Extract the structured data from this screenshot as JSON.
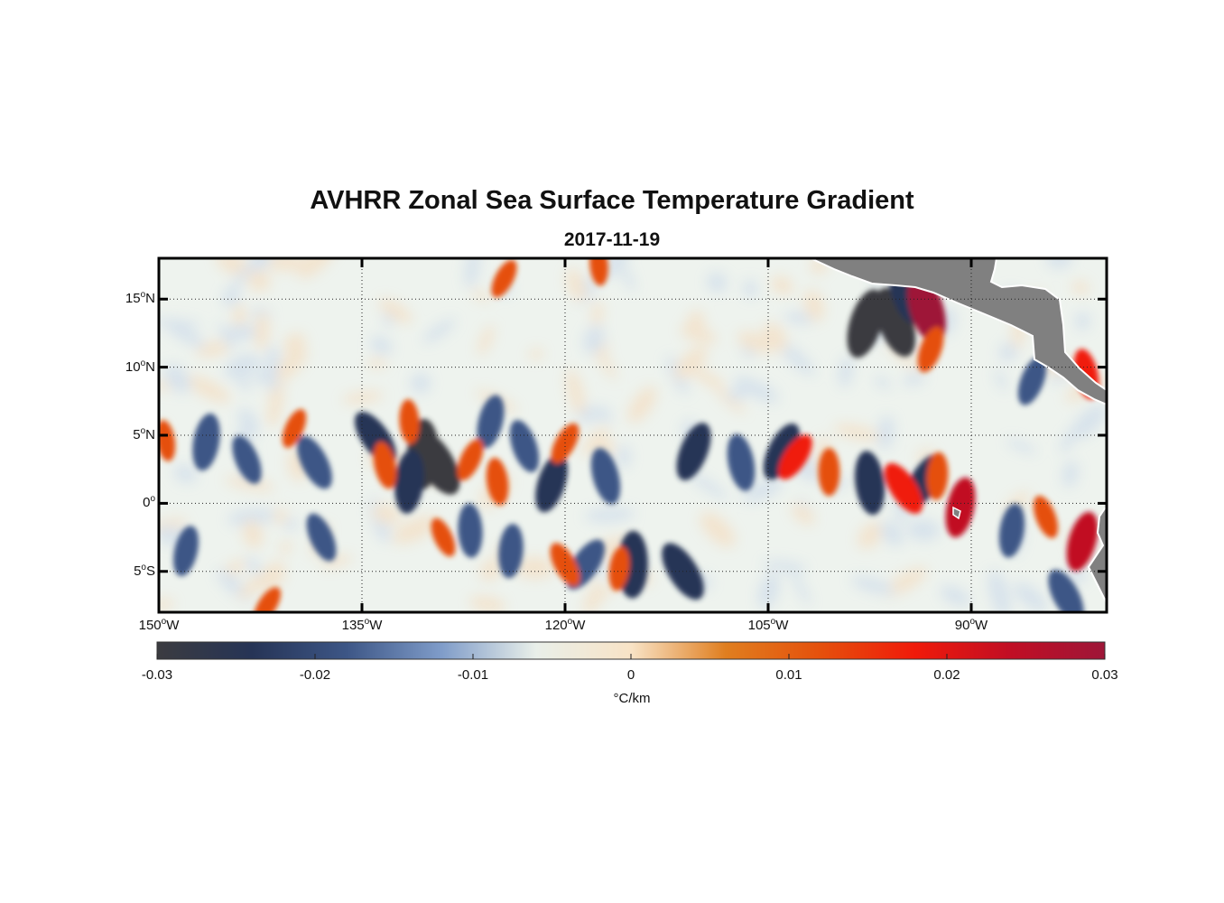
{
  "title": "AVHRR Zonal Sea Surface Temperature Gradient",
  "subtitle": "2017-11-19",
  "colors": {
    "land": "#808080",
    "frame": "#000000",
    "colormap": [
      "#3b3b40",
      "#263456",
      "#3d5686",
      "#7f9cc9",
      "#e9efe9",
      "#f8e3c6",
      "#e07e1f",
      "#e5500c",
      "#f01a0a",
      "#c10e24",
      "#9e1638"
    ]
  },
  "map": {
    "projection": "plate-carree",
    "lon_range": [
      -150,
      -80
    ],
    "lat_range": [
      -8,
      18
    ],
    "graticule": "dotted",
    "lat_ticks": [
      {
        "deg": "15",
        "hemi": "N",
        "value": 15
      },
      {
        "deg": "10",
        "hemi": "N",
        "value": 10
      },
      {
        "deg": "5",
        "hemi": "N",
        "value": 5
      },
      {
        "deg": "0",
        "hemi": "",
        "value": 0
      },
      {
        "deg": "5",
        "hemi": "S",
        "value": -5
      }
    ],
    "lon_ticks": [
      {
        "deg": "150",
        "hemi": "W",
        "value": -150
      },
      {
        "deg": "135",
        "hemi": "W",
        "value": -135
      },
      {
        "deg": "120",
        "hemi": "W",
        "value": -120
      },
      {
        "deg": "105",
        "hemi": "W",
        "value": -105
      },
      {
        "deg": "90",
        "hemi": "W",
        "value": -90
      }
    ],
    "land_regions": [
      "Central America",
      "South America coast",
      "Galapagos Islands"
    ],
    "features": [
      {
        "name": "cold-filament",
        "sign": "negative",
        "strength": -0.022,
        "lon": -134.0,
        "lat": 4.8
      },
      {
        "name": "cold-core",
        "sign": "negative",
        "strength": -0.028,
        "lon": -130.5,
        "lat": 3.6
      },
      {
        "name": "cold-core",
        "sign": "negative",
        "strength": -0.03,
        "lon": -129.5,
        "lat": 3.0
      },
      {
        "name": "cold-filament",
        "sign": "negative",
        "strength": -0.024,
        "lon": -131.5,
        "lat": 1.6
      },
      {
        "name": "cold-filament",
        "sign": "negative",
        "strength": -0.02,
        "lon": -138.5,
        "lat": 3.0
      },
      {
        "name": "cold-filament",
        "sign": "negative",
        "strength": -0.02,
        "lon": -146.5,
        "lat": 4.5
      },
      {
        "name": "cold-filament",
        "sign": "negative",
        "strength": -0.016,
        "lon": -143.5,
        "lat": 3.2
      },
      {
        "name": "cold-patch",
        "sign": "negative",
        "strength": -0.018,
        "lon": -125.5,
        "lat": 6.0
      },
      {
        "name": "cold-patch",
        "sign": "negative",
        "strength": -0.018,
        "lon": -123.0,
        "lat": 4.2
      },
      {
        "name": "cold-band",
        "sign": "negative",
        "strength": -0.022,
        "lon": -121.0,
        "lat": 1.5
      },
      {
        "name": "cold-band",
        "sign": "negative",
        "strength": -0.02,
        "lon": -117.0,
        "lat": 2.0
      },
      {
        "name": "cold-band",
        "sign": "negative",
        "strength": -0.022,
        "lon": -110.5,
        "lat": 3.8
      },
      {
        "name": "cold-band",
        "sign": "negative",
        "strength": -0.02,
        "lon": -107.0,
        "lat": 3.0
      },
      {
        "name": "cold-band",
        "sign": "negative",
        "strength": -0.022,
        "lon": -104.0,
        "lat": 3.8
      },
      {
        "name": "cold-band",
        "sign": "negative",
        "strength": -0.024,
        "lon": -97.5,
        "lat": 1.5
      },
      {
        "name": "cold-band",
        "sign": "negative",
        "strength": -0.022,
        "lon": -93.5,
        "lat": 1.6
      },
      {
        "name": "cold-streak",
        "sign": "negative",
        "strength": -0.018,
        "lon": -127.0,
        "lat": -2.0
      },
      {
        "name": "cold-streak",
        "sign": "negative",
        "strength": -0.02,
        "lon": -118.5,
        "lat": -4.5
      },
      {
        "name": "cold-streak",
        "sign": "negative",
        "strength": -0.026,
        "lon": -115.0,
        "lat": -4.5
      },
      {
        "name": "cold-streak",
        "sign": "negative",
        "strength": -0.024,
        "lon": -111.3,
        "lat": -5.0
      },
      {
        "name": "cold-streak",
        "sign": "negative",
        "strength": -0.018,
        "lon": -124.0,
        "lat": -3.5
      },
      {
        "name": "cold-patch",
        "sign": "negative",
        "strength": -0.02,
        "lon": -83.0,
        "lat": -6.8
      },
      {
        "name": "cold-patch",
        "sign": "negative",
        "strength": -0.018,
        "lon": -87.0,
        "lat": -2.0
      },
      {
        "name": "cold-patch",
        "sign": "negative",
        "strength": -0.016,
        "lon": -138.0,
        "lat": -2.5
      },
      {
        "name": "cold-patch",
        "sign": "negative",
        "strength": -0.016,
        "lon": -148.0,
        "lat": -3.5
      },
      {
        "name": "tehuantepec-cold-eddy",
        "sign": "negative",
        "strength": -0.03,
        "lon": -95.6,
        "lat": 13.3
      },
      {
        "name": "tehuantepec-cold-arc",
        "sign": "negative",
        "strength": -0.028,
        "lon": -97.8,
        "lat": 13.2
      },
      {
        "name": "tehuantepec-cold-top",
        "sign": "negative",
        "strength": -0.026,
        "lon": -94.8,
        "lat": 15.6
      },
      {
        "name": "cold-patch",
        "sign": "negative",
        "strength": -0.016,
        "lon": -85.5,
        "lat": 9.0
      },
      {
        "name": "warm-filament",
        "sign": "positive",
        "strength": 0.014,
        "lon": -133.3,
        "lat": 2.8
      },
      {
        "name": "warm-patch",
        "sign": "positive",
        "strength": 0.012,
        "lon": -127.0,
        "lat": 3.2
      },
      {
        "name": "warm-patch",
        "sign": "positive",
        "strength": 0.014,
        "lon": -125.0,
        "lat": 1.6
      },
      {
        "name": "warm-patch",
        "sign": "positive",
        "strength": 0.012,
        "lon": -120.0,
        "lat": 4.4
      },
      {
        "name": "warm-patch",
        "sign": "positive",
        "strength": 0.012,
        "lon": -131.5,
        "lat": 6.0
      },
      {
        "name": "warm-band",
        "sign": "positive",
        "strength": 0.016,
        "lon": -103.0,
        "lat": 3.4
      },
      {
        "name": "warm-band",
        "sign": "positive",
        "strength": 0.014,
        "lon": -100.5,
        "lat": 2.3
      },
      {
        "name": "warm-band",
        "sign": "positive",
        "strength": 0.02,
        "lon": -95.0,
        "lat": 1.1
      },
      {
        "name": "warm-band",
        "sign": "positive",
        "strength": 0.014,
        "lon": -92.5,
        "lat": 2.0
      },
      {
        "name": "warm-streak",
        "sign": "positive",
        "strength": 0.014,
        "lon": -120.0,
        "lat": -4.5
      },
      {
        "name": "warm-streak",
        "sign": "positive",
        "strength": 0.012,
        "lon": -116.0,
        "lat": -4.8
      },
      {
        "name": "warm-streak",
        "sign": "positive",
        "strength": 0.01,
        "lon": -129.0,
        "lat": -2.5
      },
      {
        "name": "galapagos-warm",
        "sign": "positive",
        "strength": 0.022,
        "lon": -90.8,
        "lat": -0.3
      },
      {
        "name": "warm-patch",
        "sign": "positive",
        "strength": 0.012,
        "lon": -84.5,
        "lat": -1.0
      },
      {
        "name": "coastal-warm",
        "sign": "positive",
        "strength": 0.022,
        "lon": -81.8,
        "lat": -2.8
      },
      {
        "name": "tehuantepec-warm-band",
        "sign": "positive",
        "strength": 0.03,
        "lon": -93.3,
        "lat": 14.3
      },
      {
        "name": "tehuantepec-warm-tail",
        "sign": "positive",
        "strength": 0.014,
        "lon": -93.0,
        "lat": 11.3
      },
      {
        "name": "warm-patch",
        "sign": "positive",
        "strength": 0.016,
        "lon": -81.5,
        "lat": 9.5
      },
      {
        "name": "warm-patch",
        "sign": "positive",
        "strength": 0.01,
        "lon": -140.0,
        "lat": 5.5
      },
      {
        "name": "warm-patch",
        "sign": "positive",
        "strength": 0.01,
        "lon": -149.5,
        "lat": 4.6
      },
      {
        "name": "warm-patch",
        "sign": "positive",
        "strength": 0.01,
        "lon": -124.5,
        "lat": 16.5
      },
      {
        "name": "warm-patch",
        "sign": "positive",
        "strength": 0.01,
        "lon": -117.5,
        "lat": 17.5
      },
      {
        "name": "warm-patch",
        "sign": "positive",
        "strength": 0.01,
        "lon": -142.0,
        "lat": -7.5
      }
    ]
  },
  "colorbar": {
    "unit": "°C/km",
    "range": [
      -0.03,
      0.03
    ],
    "ticks": [
      "-0.03",
      "-0.02",
      "-0.01",
      "0",
      "0.01",
      "0.02",
      "0.03"
    ],
    "tick_values": [
      -0.03,
      -0.02,
      -0.01,
      0,
      0.01,
      0.02,
      0.03
    ]
  }
}
